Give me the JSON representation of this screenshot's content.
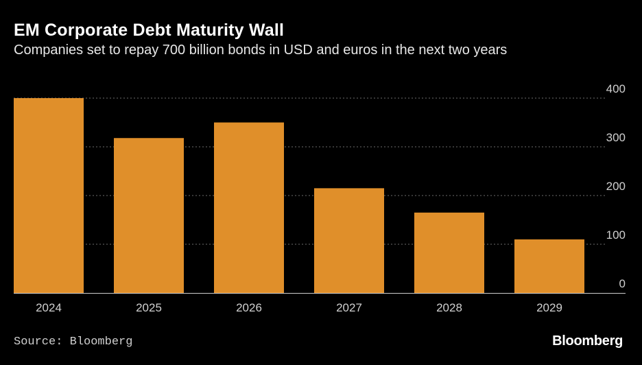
{
  "chart_data": {
    "type": "bar",
    "title": "EM Corporate Debt Maturity Wall",
    "subtitle": "Companies set to repay 700 billion bonds in USD and euros in the next two years",
    "categories": [
      "2024",
      "2025",
      "2026",
      "2027",
      "2028",
      "2029"
    ],
    "values": [
      400,
      318,
      350,
      215,
      165,
      110
    ],
    "xlabel": "",
    "ylabel": "",
    "ylim": [
      0,
      400
    ],
    "yticks": [
      0,
      100,
      200,
      300,
      400
    ],
    "grid": true,
    "bar_color": "#e08f2a",
    "grid_color": "#6e6e6e",
    "axis_color": "#cfcfcf"
  },
  "source": "Source: Bloomberg",
  "brand": "Bloomberg"
}
